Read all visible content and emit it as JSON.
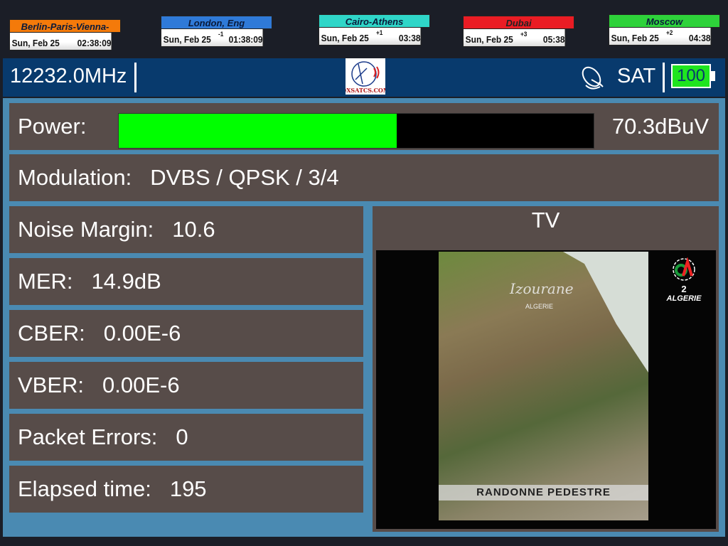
{
  "clocks": [
    {
      "city": "Berlin-Paris-Vienna-Roma",
      "date": "Sun, Feb 25",
      "offset": "",
      "time": "02:38:09",
      "color": "#f47a0a"
    },
    {
      "city": "London, Eng",
      "date": "Sun, Feb 25",
      "offset": "-1",
      "time": "01:38:09",
      "color": "#2f7ad8"
    },
    {
      "city": "Cairo-Athens",
      "date": "Sun, Feb 25",
      "offset": "+1",
      "time": "03:38",
      "color": "#2fd6c8"
    },
    {
      "city": "Dubai",
      "date": "Sun, Feb 25",
      "offset": "+3",
      "time": "05:38",
      "color": "#ea1c24"
    },
    {
      "city": "Moscow",
      "date": "Sun, Feb 25",
      "offset": "+2",
      "time": "04:38",
      "color": "#2ed23a"
    }
  ],
  "header": {
    "frequency": "12232.0MHz",
    "logo_text": "DXSATCS.COM",
    "mode": "SAT",
    "battery": "100",
    "dish_icon": "satellite-dish-icon"
  },
  "power": {
    "label": "Power:",
    "value": "70.3dBuV",
    "level": 0.586
  },
  "modulation": {
    "label": "Modulation:",
    "value": "DVBS / QPSK / 3/4"
  },
  "metrics": [
    {
      "label": "Noise Margin:",
      "value": "10.6"
    },
    {
      "label": "MER:",
      "value": "14.9dB"
    },
    {
      "label": "CBER:",
      "value": "0.00E-6"
    },
    {
      "label": "VBER:",
      "value": "0.00E-6"
    },
    {
      "label": "Packet Errors:",
      "value": "0"
    },
    {
      "label": "Elapsed time:",
      "value": "195"
    }
  ],
  "tv": {
    "title": "TV",
    "caption": "RANDONNE PEDESTRE",
    "overlay_title": "Izourane",
    "overlay_sub": "ALGERIE",
    "channel_number": "2",
    "channel_name": "ALGERIE"
  }
}
